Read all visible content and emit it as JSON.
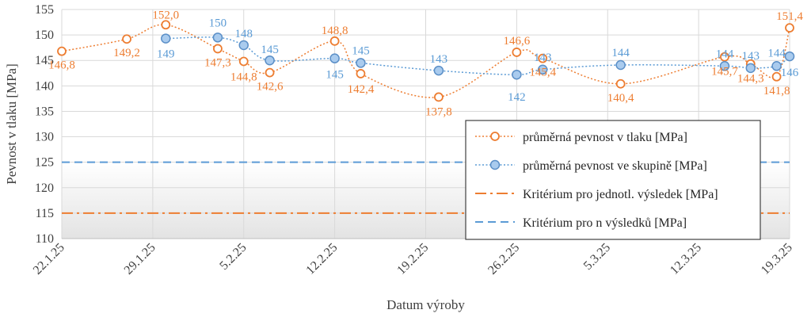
{
  "chart_data": {
    "type": "line",
    "xlabel": "Datum výroby",
    "ylabel": "Pevnost v tlaku [MPa]",
    "ylim": [
      110,
      155
    ],
    "yticks": [
      110,
      115,
      120,
      125,
      130,
      135,
      140,
      145,
      150,
      155
    ],
    "x_tick_labels": [
      "22.1.25",
      "29.1.25",
      "5.2.25",
      "12.2.25",
      "19.2.25",
      "26.2.25",
      "5.3.25",
      "12.3.25",
      "19.3.25"
    ],
    "x_day_range": [
      0,
      56
    ],
    "grid": true,
    "legend_position": "bottom-right",
    "series": [
      {
        "name": "průměrná pevnost v tlaku [MPa]",
        "color": "#ED7D31",
        "style": "dotted-smooth-circle-markers",
        "points": [
          {
            "x": 0,
            "y": 146.8,
            "label": "146,8"
          },
          {
            "x": 5,
            "y": 149.2,
            "label": "149,2"
          },
          {
            "x": 8,
            "y": 152.0,
            "label": "152,0"
          },
          {
            "x": 12,
            "y": 147.3,
            "label": "147,3"
          },
          {
            "x": 14,
            "y": 144.8,
            "label": "144,8"
          },
          {
            "x": 16,
            "y": 142.6,
            "label": "142,6"
          },
          {
            "x": 21,
            "y": 148.8,
            "label": "148,8"
          },
          {
            "x": 23,
            "y": 142.4,
            "label": "142,4"
          },
          {
            "x": 29,
            "y": 137.8,
            "label": "137,8"
          },
          {
            "x": 35,
            "y": 146.6,
            "label": "146,6"
          },
          {
            "x": 37,
            "y": 145.4,
            "label": "145,4"
          },
          {
            "x": 43,
            "y": 140.4,
            "label": "140,4"
          },
          {
            "x": 51,
            "y": 145.7,
            "label": "145,7"
          },
          {
            "x": 53,
            "y": 144.3,
            "label": "144,3"
          },
          {
            "x": 55,
            "y": 141.8,
            "label": "141,8"
          },
          {
            "x": 56,
            "y": 151.4,
            "label": "151,4"
          }
        ]
      },
      {
        "name": "průměrná pevnost ve skupině [MPa]",
        "color": "#5B9BD5",
        "style": "dotted-smooth-circle-markers",
        "points": [
          {
            "x": 8,
            "y": 149.3,
            "label": "149"
          },
          {
            "x": 12,
            "y": 149.5,
            "label": "150"
          },
          {
            "x": 14,
            "y": 148.0,
            "label": "148"
          },
          {
            "x": 16,
            "y": 145.0,
            "label": "145"
          },
          {
            "x": 21,
            "y": 145.4,
            "label": "145"
          },
          {
            "x": 23,
            "y": 144.5,
            "label": "145"
          },
          {
            "x": 29,
            "y": 143.0,
            "label": "143"
          },
          {
            "x": 35,
            "y": 142.2,
            "label": "142"
          },
          {
            "x": 37,
            "y": 143.2,
            "label": "143"
          },
          {
            "x": 43,
            "y": 144.1,
            "label": "144"
          },
          {
            "x": 51,
            "y": 143.9,
            "label": "144"
          },
          {
            "x": 53,
            "y": 143.5,
            "label": "143"
          },
          {
            "x": 55,
            "y": 143.9,
            "label": "144"
          },
          {
            "x": 56,
            "y": 145.8,
            "label": "146"
          }
        ]
      },
      {
        "name": "Kritérium pro jednotl. výsledek [MPa]",
        "color": "#ED7D31",
        "style": "dash-dot",
        "value": 115
      },
      {
        "name": "Kritérium pro n výsledků [MPa]",
        "color": "#5B9BD5",
        "style": "dashed",
        "value": 125
      }
    ]
  }
}
